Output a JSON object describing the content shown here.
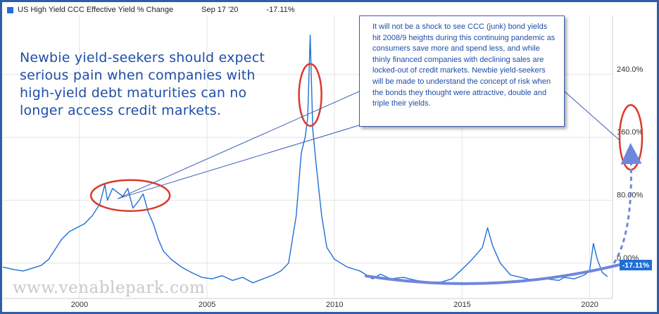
{
  "legend": {
    "series_name": "US High Yield CCC Effective Yield % Change",
    "date": "Sep 17 '20",
    "value": "-17.11%"
  },
  "annotation_left": "Newbie yield-seekers should expect serious pain when companies with high-yield debt maturities can no longer access credit markets.",
  "annotation_box": "It will not be a shock to see CCC (junk) bond yields hit 2008/9 heights during this continuing pandemic as consumers save more and spend less, and while thinly financed companies with declining sales are locked-out of credit markets. Newbie yield-seekers will be made to understand the concept of risk when the bonds they thought were attractive, double and triple their yields.",
  "watermark": "www.venablepark.com",
  "last_value_badge": "-17.11%",
  "colors": {
    "line": "#1f6fd6",
    "highlight": "#d93a2b",
    "frame": "#2e5ea8",
    "arc": "#6f86dd"
  },
  "chart_data": {
    "type": "line",
    "title": "US High Yield CCC Effective Yield % Change",
    "y_ticks": [
      "240.0%",
      "160.0%",
      "80.00%",
      "0.00%"
    ],
    "y_tick_values": [
      240,
      160,
      80,
      0
    ],
    "x_ticks": [
      "2000",
      "2005",
      "2010",
      "2015",
      "2020"
    ],
    "x_tick_values": [
      2000,
      2005,
      2010,
      2015,
      2020
    ],
    "xlim": [
      1997.0,
      2020.9
    ],
    "ylim": [
      -45,
      315
    ],
    "grid": true,
    "series": [
      {
        "name": "US High Yield CCC Effective Yield % Change",
        "x": [
          1997.0,
          1997.4,
          1997.8,
          1998.2,
          1998.5,
          1998.8,
          1999.0,
          1999.3,
          1999.6,
          1999.9,
          2000.2,
          2000.5,
          2000.8,
          2001.0,
          2001.1,
          2001.3,
          2001.5,
          2001.7,
          2001.9,
          2002.1,
          2002.3,
          2002.5,
          2002.7,
          2002.9,
          2003.1,
          2003.3,
          2003.6,
          2004.0,
          2004.4,
          2004.8,
          2005.2,
          2005.6,
          2006.0,
          2006.4,
          2006.8,
          2007.2,
          2007.6,
          2007.9,
          2008.2,
          2008.5,
          2008.7,
          2008.85,
          2008.95,
          2009.05,
          2009.15,
          2009.3,
          2009.5,
          2009.7,
          2010.0,
          2010.5,
          2011.0,
          2011.5,
          2011.8,
          2012.2,
          2012.7,
          2013.2,
          2013.7,
          2014.2,
          2014.6,
          2015.0,
          2015.4,
          2015.8,
          2016.0,
          2016.2,
          2016.5,
          2016.9,
          2017.3,
          2017.8,
          2018.3,
          2018.8,
          2019.0,
          2019.4,
          2019.8,
          2020.0,
          2020.15,
          2020.3,
          2020.5,
          2020.7
        ],
        "y": [
          -5,
          -8,
          -10,
          -6,
          -3,
          5,
          15,
          30,
          40,
          45,
          50,
          60,
          75,
          100,
          80,
          95,
          90,
          85,
          95,
          70,
          78,
          88,
          65,
          50,
          30,
          15,
          5,
          -5,
          -12,
          -18,
          -20,
          -16,
          -22,
          -18,
          -25,
          -20,
          -15,
          -10,
          0,
          60,
          140,
          160,
          185,
          290,
          170,
          120,
          60,
          20,
          5,
          -5,
          -10,
          -20,
          -14,
          -20,
          -18,
          -22,
          -24,
          -24,
          -20,
          -8,
          5,
          20,
          45,
          22,
          0,
          -15,
          -18,
          -22,
          -20,
          -22,
          -18,
          -20,
          -15,
          -10,
          25,
          5,
          -12,
          -17.11
        ]
      }
    ],
    "highlights": [
      "2001-2002 peak",
      "2008-2009 peak",
      "160.0% level"
    ]
  }
}
